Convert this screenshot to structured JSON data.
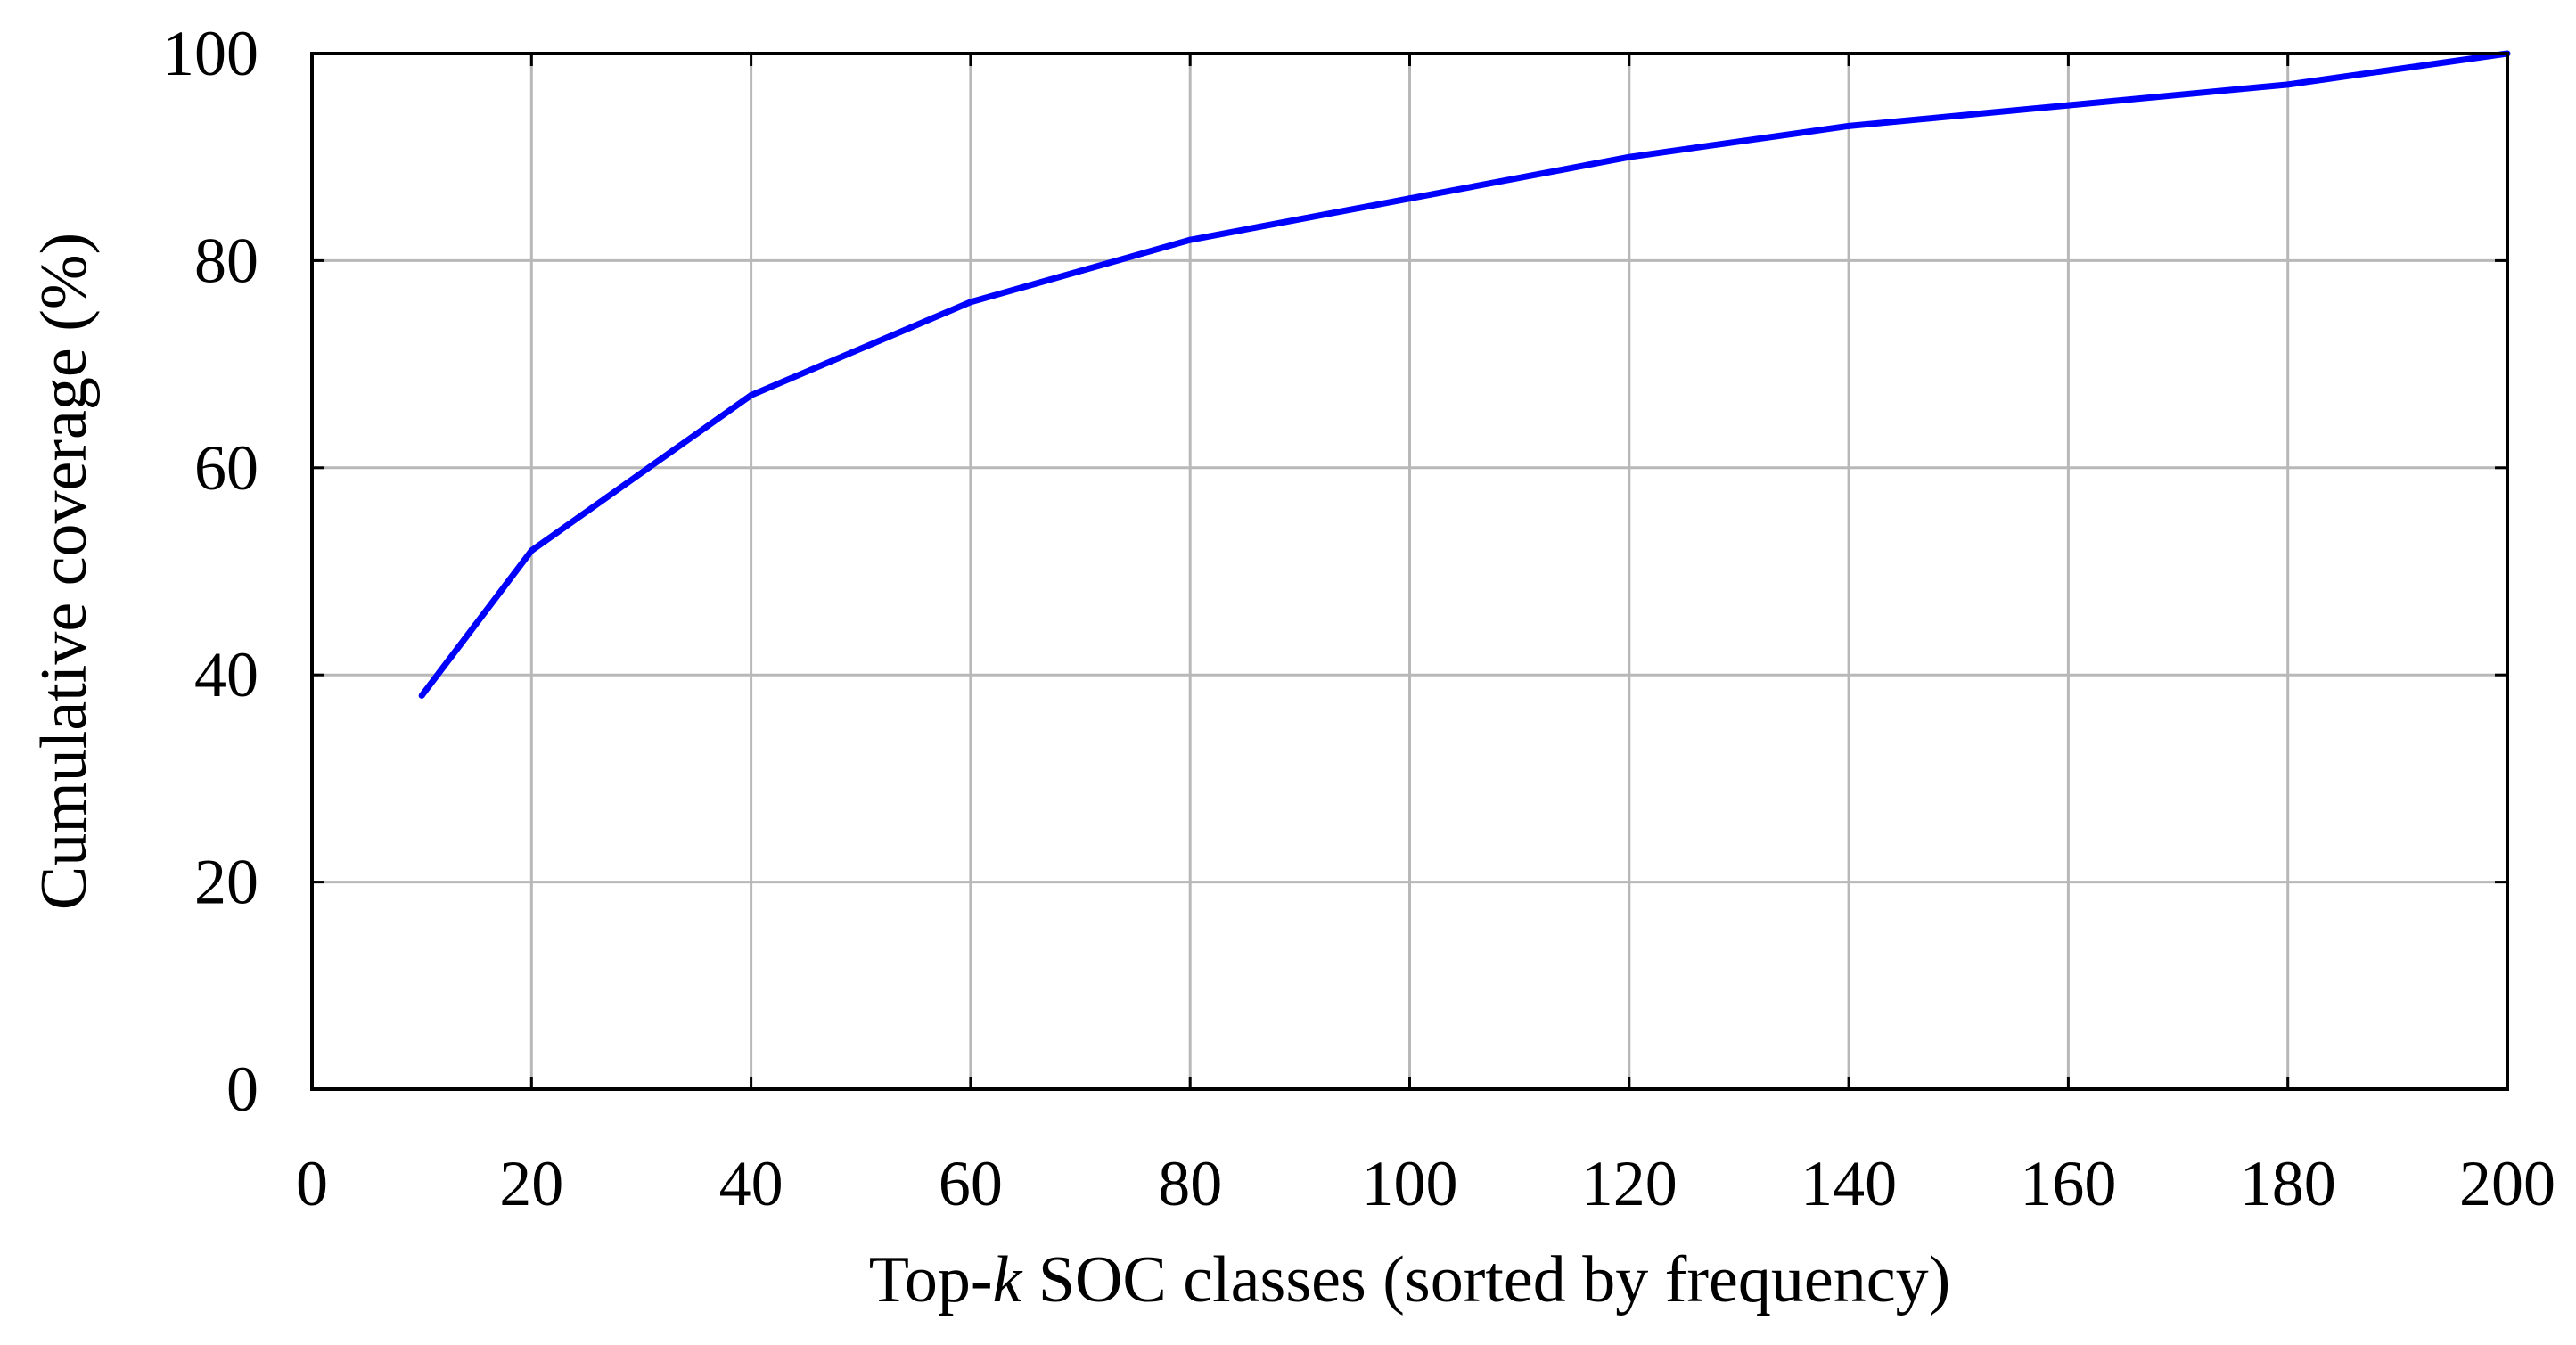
{
  "chart_data": {
    "type": "line",
    "title": "",
    "xlabel_parts": [
      "Top-",
      "k",
      " SOC classes (sorted by frequency)"
    ],
    "ylabel": "Cumulative coverage (%)",
    "xlim": [
      0,
      200
    ],
    "ylim": [
      0,
      100
    ],
    "xticks": [
      "0",
      "20",
      "40",
      "60",
      "80",
      "100",
      "120",
      "140",
      "160",
      "180",
      "200"
    ],
    "yticks": [
      "0",
      "20",
      "40",
      "60",
      "80",
      "100"
    ],
    "grid": true,
    "series": [
      {
        "color": "#0000ff",
        "x": [
          10,
          20,
          40,
          60,
          80,
          100,
          120,
          140,
          160,
          180,
          200
        ],
        "y": [
          38,
          52,
          67,
          76,
          82,
          86,
          90,
          93,
          95,
          97,
          100
        ]
      }
    ]
  }
}
